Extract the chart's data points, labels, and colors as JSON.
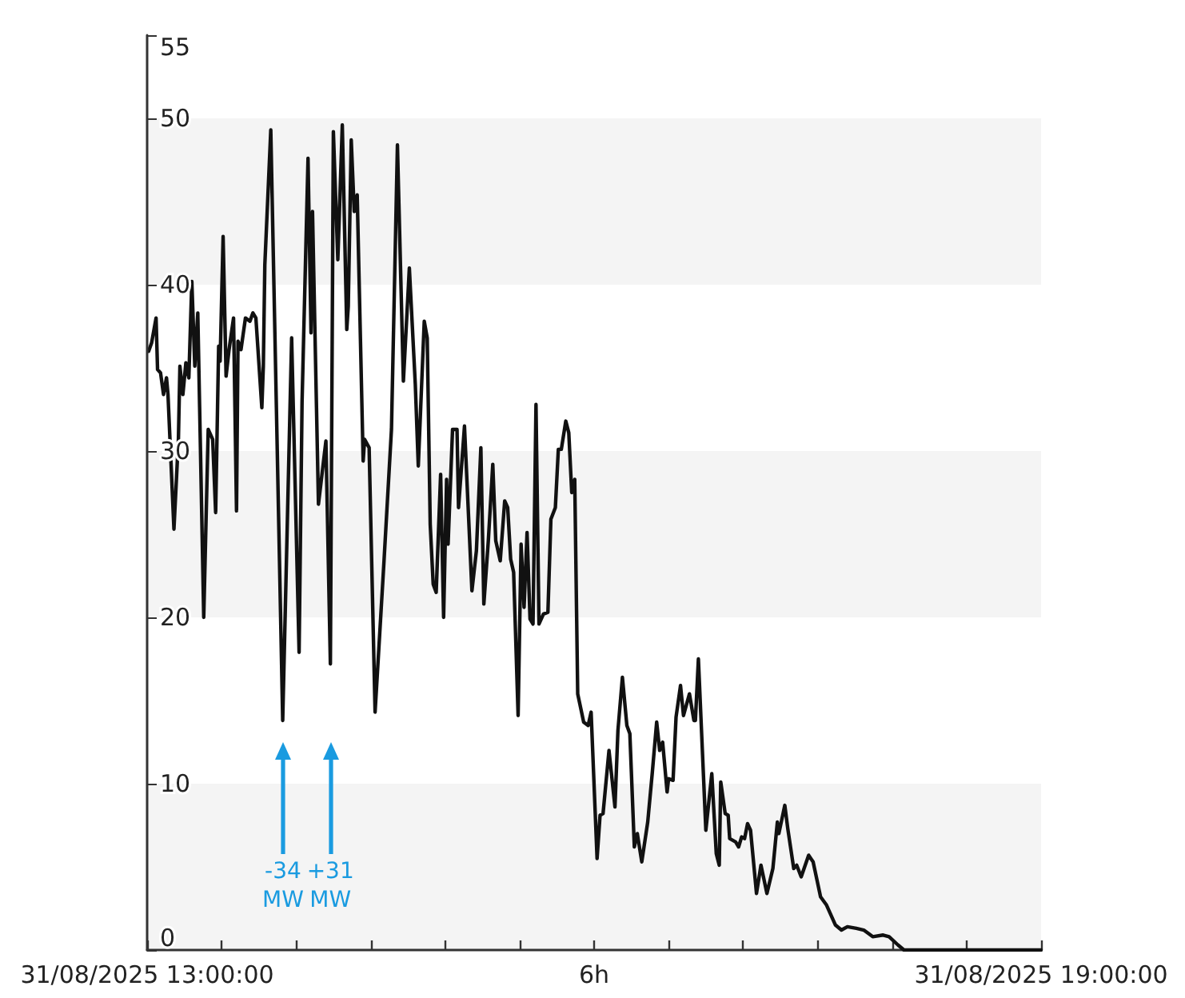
{
  "chart_data": {
    "type": "line",
    "x": [
      "2025-08-31T13:00:36",
      "2025-08-31T13:01:48",
      "2025-08-31T13:03:36",
      "2025-08-31T13:04:12",
      "2025-08-31T13:05:24",
      "2025-08-31T13:06:36",
      "2025-08-31T13:07:48",
      "2025-08-31T13:08:24",
      "2025-08-31T13:10:48",
      "2025-08-31T13:12:36",
      "2025-08-31T13:13:12",
      "2025-08-31T13:14:24",
      "2025-08-31T13:15:36",
      "2025-08-31T13:16:48",
      "2025-08-31T13:18:00",
      "2025-08-31T13:19:12",
      "2025-08-31T13:20:24",
      "2025-08-31T13:22:48",
      "2025-08-31T13:24:36",
      "2025-08-31T13:26:24",
      "2025-08-31T13:27:36",
      "2025-08-31T13:28:48",
      "2025-08-31T13:29:24",
      "2025-08-31T13:30:36",
      "2025-08-31T13:31:48",
      "2025-08-31T13:33:00",
      "2025-08-31T13:34:48",
      "2025-08-31T13:36:00",
      "2025-08-31T13:36:36",
      "2025-08-31T13:37:48",
      "2025-08-31T13:39:36",
      "2025-08-31T13:41:24",
      "2025-08-31T13:42:36",
      "2025-08-31T13:43:48",
      "2025-08-31T13:46:12",
      "2025-08-31T13:46:48",
      "2025-08-31T13:47:24",
      "2025-08-31T13:49:48",
      "2025-08-31T13:54:36",
      "2025-08-31T13:58:12",
      "2025-08-31T14:01:12",
      "2025-08-31T14:02:24",
      "2025-08-31T14:04:48",
      "2025-08-31T14:06:00",
      "2025-08-31T14:06:36",
      "2025-08-31T14:09:00",
      "2025-08-31T14:12:00",
      "2025-08-31T14:13:48",
      "2025-08-31T14:15:00",
      "2025-08-31T14:16:48",
      "2025-08-31T14:18:36",
      "2025-08-31T14:20:24",
      "2025-08-31T14:21:00",
      "2025-08-31T14:22:12",
      "2025-08-31T14:23:24",
      "2025-08-31T14:24:36",
      "2025-08-31T14:27:00",
      "2025-08-31T14:27:36",
      "2025-08-31T14:29:24",
      "2025-08-31T14:31:48",
      "2025-08-31T14:35:24",
      "2025-08-31T14:38:24",
      "2025-08-31T14:40:48",
      "2025-08-31T14:43:12",
      "2025-08-31T14:45:36",
      "2025-08-31T14:48:00",
      "2025-08-31T14:49:12",
      "2025-08-31T14:51:36",
      "2025-08-31T14:52:48",
      "2025-08-31T14:54:00",
      "2025-08-31T14:55:12",
      "2025-08-31T14:56:24",
      "2025-08-31T14:58:12",
      "2025-08-31T14:59:24",
      "2025-08-31T15:00:36",
      "2025-08-31T15:01:12",
      "2025-08-31T15:03:00",
      "2025-08-31T15:04:48",
      "2025-08-31T15:05:24",
      "2025-08-31T15:07:48",
      "2025-08-31T15:10:48",
      "2025-08-31T15:12:36",
      "2025-08-31T15:14:24",
      "2025-08-31T15:15:36",
      "2025-08-31T15:17:24",
      "2025-08-31T15:19:12",
      "2025-08-31T15:20:24",
      "2025-08-31T15:22:12",
      "2025-08-31T15:24:00",
      "2025-08-31T15:25:12",
      "2025-08-31T15:26:24",
      "2025-08-31T15:27:36",
      "2025-08-31T15:29:24",
      "2025-08-31T15:30:36",
      "2025-08-31T15:31:48",
      "2025-08-31T15:33:00",
      "2025-08-31T15:34:12",
      "2025-08-31T15:35:24",
      "2025-08-31T15:36:36",
      "2025-08-31T15:37:48",
      "2025-08-31T15:39:36",
      "2025-08-31T15:41:24",
      "2025-08-31T15:42:36",
      "2025-08-31T15:44:24",
      "2025-08-31T15:45:36",
      "2025-08-31T15:46:48",
      "2025-08-31T15:48:36",
      "2025-08-31T15:49:48",
      "2025-08-31T15:51:00",
      "2025-08-31T15:52:12",
      "2025-08-31T15:53:24",
      "2025-08-31T15:55:48",
      "2025-08-31T15:57:36",
      "2025-08-31T15:58:48",
      "2025-08-31T16:01:12",
      "2025-08-31T16:02:24",
      "2025-08-31T16:03:36",
      "2025-08-31T16:06:00",
      "2025-08-31T16:08:24",
      "2025-08-31T16:09:36",
      "2025-08-31T16:11:24",
      "2025-08-31T16:13:12",
      "2025-08-31T16:14:24",
      "2025-08-31T16:16:12",
      "2025-08-31T16:17:24",
      "2025-08-31T16:19:12",
      "2025-08-31T16:21:36",
      "2025-08-31T16:23:24",
      "2025-08-31T16:25:12",
      "2025-08-31T16:26:24",
      "2025-08-31T16:27:36",
      "2025-08-31T16:29:24",
      "2025-08-31T16:30:00",
      "2025-08-31T16:31:48",
      "2025-08-31T16:33:00",
      "2025-08-31T16:34:48",
      "2025-08-31T16:36:00",
      "2025-08-31T16:38:24",
      "2025-08-31T16:40:12",
      "2025-08-31T16:40:48",
      "2025-08-31T16:42:00",
      "2025-08-31T16:45:00",
      "2025-08-31T16:47:24",
      "2025-08-31T16:49:12",
      "2025-08-31T16:50:24",
      "2025-08-31T16:51:00",
      "2025-08-31T16:52:48",
      "2025-08-31T16:54:00",
      "2025-08-31T16:54:36",
      "2025-08-31T16:57:00",
      "2025-08-31T16:58:12",
      "2025-08-31T16:59:24",
      "2025-08-31T17:00:36",
      "2025-08-31T17:01:48",
      "2025-08-31T17:03:00",
      "2025-08-31T17:05:24",
      "2025-08-31T17:07:12",
      "2025-08-31T17:09:36",
      "2025-08-31T17:12:00",
      "2025-08-31T17:13:48",
      "2025-08-31T17:14:24",
      "2025-08-31T17:16:48",
      "2025-08-31T17:18:00",
      "2025-08-31T17:20:24",
      "2025-08-31T17:21:36",
      "2025-08-31T17:23:24",
      "2025-08-31T17:26:24",
      "2025-08-31T17:28:12",
      "2025-08-31T17:31:12",
      "2025-08-31T17:33:36",
      "2025-08-31T17:37:12",
      "2025-08-31T17:39:36",
      "2025-08-31T17:42:00",
      "2025-08-31T17:45:36",
      "2025-08-31T17:48:36",
      "2025-08-31T17:52:12",
      "2025-08-31T17:56:24",
      "2025-08-31T17:58:48",
      "2025-08-31T18:02:24",
      "2025-08-31T18:04:48",
      "2025-08-31T19:00:00"
    ],
    "series": [
      {
        "color": "#111111",
        "values": [
          36.0,
          36.5,
          38,
          34.9,
          34.7,
          33.4,
          34.4,
          33.4,
          25.3,
          30.7,
          35.1,
          33.4,
          35.3,
          34.4,
          40.2,
          35.1,
          38.3,
          20.0,
          31.3,
          30.7,
          26.3,
          36.3,
          35.4,
          42.9,
          34.5,
          36.1,
          38,
          26.4,
          36.6,
          36.1,
          38,
          37.8,
          38.3,
          38,
          32.6,
          35.1,
          41.2,
          49.3,
          13.8,
          36.8,
          17.9,
          33,
          47.6,
          37.1,
          44.4,
          26.8,
          30.6,
          17.2,
          49.2,
          41.5,
          49.6,
          37.3,
          38.7,
          48.7,
          44.4,
          45.4,
          29.4,
          30.7,
          30.2,
          14.3,
          23.4,
          31.3,
          48.4,
          34.2,
          41,
          34,
          29.1,
          37.8,
          36.8,
          25.6,
          22,
          21.5,
          28.6,
          20,
          28.3,
          24.4,
          31.3,
          31.3,
          26.6,
          31.5,
          21.6,
          24,
          30.2,
          20.8,
          24.6,
          29.2,
          24.6,
          23.4,
          27,
          26.6,
          23.5,
          22.7,
          14.1,
          24.4,
          20.6,
          25.1,
          19.9,
          19.6,
          32.8,
          19.6,
          20.2,
          20.3,
          25.9,
          26.6,
          30.1,
          30.1,
          31.8,
          31.1,
          27.5,
          28.3,
          15.4,
          13.7,
          13.5,
          14.3,
          5.5,
          8.1,
          8.2,
          12,
          8.6,
          13.2,
          16.4,
          13.5,
          13,
          6.2,
          7,
          5.3,
          7.7,
          10.6,
          13.7,
          12,
          12.5,
          9.5,
          10.3,
          10.2,
          14,
          15.9,
          14.1,
          15.4,
          13.8,
          13.8,
          17.5,
          7.2,
          10.6,
          5.8,
          5.1,
          10.1,
          8.2,
          8.1,
          6.7,
          6.5,
          6.2,
          6.8,
          6.7,
          7.6,
          7.2,
          3.4,
          5.1,
          3.4,
          4.9,
          7.7,
          7,
          8.7,
          7.3,
          4.9,
          5.1,
          4.4,
          5.7,
          5.3,
          3.2,
          2.7,
          1.5,
          1.2,
          1.4,
          1.3,
          1.2,
          0.8,
          0.9,
          0.8,
          0.3,
          0,
          0
        ]
      }
    ],
    "xlim": [
      "2025-08-31T13:00",
      "2025-08-31T19:00"
    ],
    "xticks": [
      {
        "value": "2025-08-31T13:00",
        "label": "31/08/2025 13:00:00"
      },
      {
        "value": "2025-08-31T13:30",
        "label": null
      },
      {
        "value": "2025-08-31T14:00",
        "label": null
      },
      {
        "value": "2025-08-31T14:30",
        "label": null
      },
      {
        "value": "2025-08-31T15:00",
        "label": null
      },
      {
        "value": "2025-08-31T15:30",
        "label": null
      },
      {
        "value": "2025-08-31T16:00",
        "label": "6h"
      },
      {
        "value": "2025-08-31T16:30",
        "label": null
      },
      {
        "value": "2025-08-31T17:00",
        "label": null
      },
      {
        "value": "2025-08-31T17:30",
        "label": null
      },
      {
        "value": "2025-08-31T18:00",
        "label": null
      },
      {
        "value": "2025-08-31T18:30",
        "label": null
      },
      {
        "value": "2025-08-31T19:00",
        "label": "31/08/2025 19:00:00"
      }
    ],
    "ylim": [
      0,
      55
    ],
    "yticks": [
      0,
      10,
      20,
      30,
      40,
      50,
      55
    ],
    "bands": [
      {
        "axis": "y",
        "from": 0,
        "to": 10,
        "color": "#f4f4f4"
      },
      {
        "axis": "y",
        "from": 20,
        "to": 30,
        "color": "#f4f4f4"
      },
      {
        "axis": "y",
        "from": 40,
        "to": 50,
        "color": "#f4f4f4"
      }
    ],
    "annotations": [
      "-34 MW",
      "+31 MW"
    ],
    "marker": "none",
    "line_style": "solid"
  }
}
